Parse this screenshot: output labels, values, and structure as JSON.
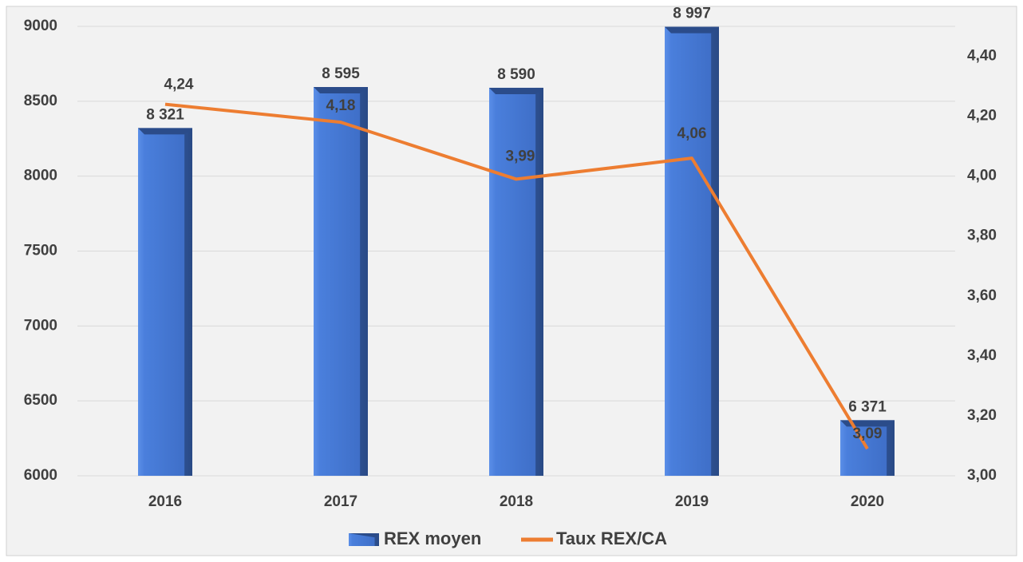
{
  "chart_data": {
    "type": "bar",
    "categories": [
      "2016",
      "2017",
      "2018",
      "2019",
      "2020"
    ],
    "series": [
      {
        "name": "REX moyen",
        "color": "#4472c4",
        "values": [
          8321,
          8595,
          8590,
          8997,
          6371
        ],
        "value_labels": [
          "8 321",
          "8 595",
          "8 590",
          "8 997",
          "6 371"
        ]
      },
      {
        "name": "Taux REX/CA",
        "type": "line",
        "axis": "y2",
        "color": "#ed7d31",
        "values": [
          4.24,
          4.18,
          3.99,
          4.06,
          3.09
        ],
        "value_labels": [
          "4,24",
          "4,18",
          "3,99",
          "4,06",
          "3,09"
        ]
      }
    ],
    "ylim": [
      6000,
      9000
    ],
    "yticks": [
      6000,
      6500,
      7000,
      7500,
      8000,
      8500,
      9000
    ],
    "y2lim": [
      3.0,
      4.5
    ],
    "y2ticks": [
      {
        "value": 3.0,
        "label": "3,00"
      },
      {
        "value": 3.2,
        "label": "3,20"
      },
      {
        "value": 3.4,
        "label": "3,40"
      },
      {
        "value": 3.6,
        "label": "3,60"
      },
      {
        "value": 3.8,
        "label": "3,80"
      },
      {
        "value": 4.0,
        "label": "4,00"
      },
      {
        "value": 4.2,
        "label": "4,20"
      },
      {
        "value": 4.4,
        "label": "4,40"
      }
    ],
    "grid": true,
    "legend": "bottom"
  }
}
